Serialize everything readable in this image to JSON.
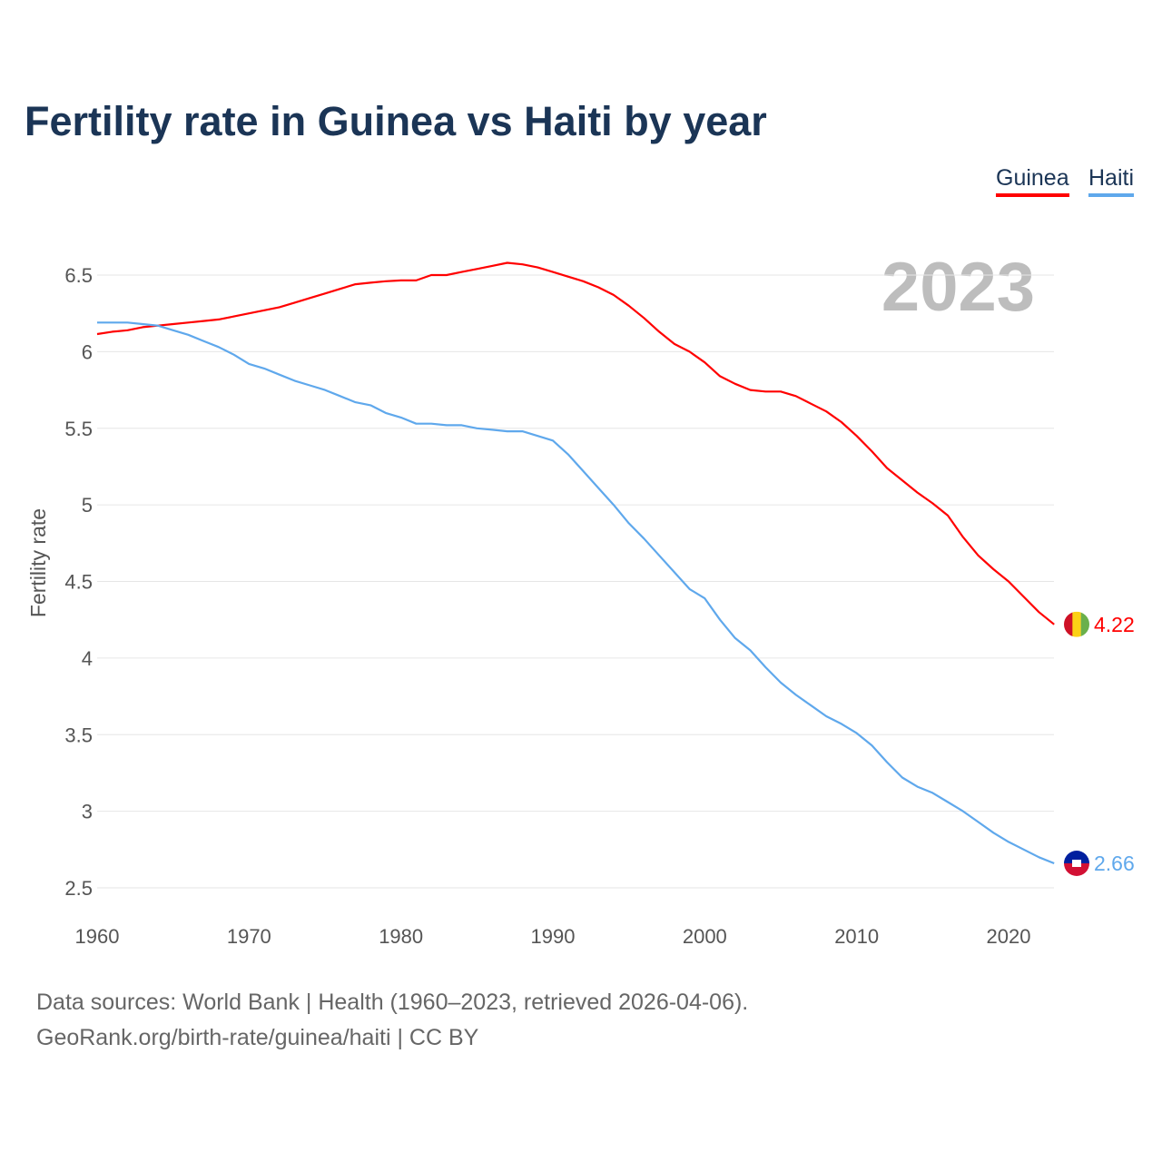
{
  "title": "Fertility rate in Guinea vs Haiti by year",
  "legend": [
    "Guinea",
    "Haiti"
  ],
  "year_watermark": "2023",
  "footer": {
    "line1": "Data sources: World Bank | Health (1960–2023, retrieved 2026-04-06).",
    "line2": "GeoRank.org/birth-rate/guinea/haiti | CC BY"
  },
  "chart_data": {
    "type": "line",
    "title": "Fertility rate in Guinea vs Haiti by year",
    "xlabel": "",
    "ylabel": "Fertility rate",
    "xlim": [
      1960,
      2023
    ],
    "ylim": [
      2.5,
      6.5
    ],
    "yticks": [
      "2.5",
      "3",
      "3.5",
      "4",
      "4.5",
      "5",
      "5.5",
      "6",
      "6.5"
    ],
    "xticks": [
      "1960",
      "1970",
      "1980",
      "1990",
      "2000",
      "2010",
      "2020"
    ],
    "grid": true,
    "legend_position": "top-right",
    "x_start": 1960,
    "series": [
      {
        "name": "Guinea",
        "color": "#ff0000",
        "end_label": "4.22",
        "values": [
          6.115,
          6.13,
          6.14,
          6.16,
          6.17,
          6.18,
          6.19,
          6.2,
          6.21,
          6.23,
          6.25,
          6.27,
          6.29,
          6.32,
          6.35,
          6.38,
          6.41,
          6.44,
          6.45,
          6.46,
          6.465,
          6.465,
          6.5,
          6.5,
          6.52,
          6.54,
          6.56,
          6.58,
          6.57,
          6.55,
          6.52,
          6.49,
          6.46,
          6.42,
          6.37,
          6.3,
          6.22,
          6.13,
          6.05,
          6.0,
          5.93,
          5.84,
          5.79,
          5.75,
          5.74,
          5.74,
          5.71,
          5.66,
          5.61,
          5.54,
          5.45,
          5.35,
          5.24,
          5.16,
          5.08,
          5.01,
          4.93,
          4.79,
          4.67,
          4.58,
          4.5,
          4.4,
          4.3,
          4.22
        ]
      },
      {
        "name": "Haiti",
        "color": "#5fa8ec",
        "end_label": "2.66",
        "values": [
          6.19,
          6.19,
          6.19,
          6.18,
          6.17,
          6.14,
          6.11,
          6.07,
          6.03,
          5.98,
          5.92,
          5.89,
          5.85,
          5.81,
          5.78,
          5.75,
          5.71,
          5.67,
          5.65,
          5.6,
          5.57,
          5.53,
          5.53,
          5.52,
          5.52,
          5.5,
          5.49,
          5.48,
          5.48,
          5.45,
          5.42,
          5.33,
          5.22,
          5.11,
          5.0,
          4.88,
          4.78,
          4.67,
          4.56,
          4.45,
          4.39,
          4.25,
          4.13,
          4.05,
          3.94,
          3.84,
          3.76,
          3.69,
          3.62,
          3.57,
          3.51,
          3.43,
          3.32,
          3.22,
          3.16,
          3.12,
          3.06,
          3.0,
          2.93,
          2.86,
          2.8,
          2.75,
          2.7,
          2.66
        ]
      }
    ]
  }
}
